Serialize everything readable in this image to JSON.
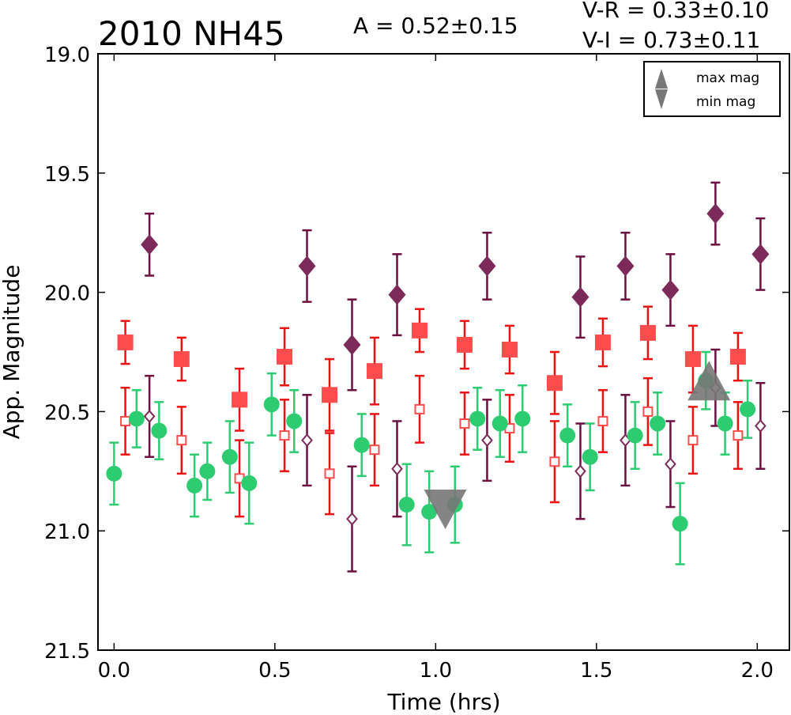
{
  "chart_data": {
    "type": "scatter",
    "title": "2010 NH45",
    "amplitude_text": "A  = 0.52±0.15",
    "color_text_1": "V-R = 0.33±0.10",
    "color_text_2": "V-I  = 0.73±0.11",
    "xlabel": "Time (hrs)",
    "ylabel": "App. Magnitude",
    "xlim": [
      -0.05,
      2.1
    ],
    "ylim": [
      21.5,
      19.0
    ],
    "y_inverted": true,
    "grid": false,
    "xticks": [
      "0.0",
      "0.5",
      "1.0",
      "1.5",
      "2.0"
    ],
    "yticks": [
      "19.0",
      "19.5",
      "20.0",
      "20.5",
      "21.0",
      "21.5"
    ],
    "legend": {
      "position": "top-right",
      "entries": [
        {
          "label": "max mag",
          "marker": "triangle-up"
        },
        {
          "label": "min mag",
          "marker": "triangle-down"
        }
      ]
    },
    "colors": {
      "green": "#2ecc71",
      "red": "#ff4d4d",
      "red_err": "#ee1111",
      "purple": "#7b2a5a",
      "purple_err": "#6b1040",
      "marker_gray": "#777777"
    },
    "series": [
      {
        "style": "green-circle",
        "x": [
          0.0,
          0.07,
          0.14,
          0.25,
          0.29,
          0.36,
          0.42,
          0.49,
          0.56,
          0.77,
          0.91,
          0.98,
          1.06,
          1.13,
          1.2,
          1.27,
          1.41,
          1.48,
          1.62,
          1.69,
          1.76,
          1.84,
          1.9,
          1.97
        ],
        "y": [
          20.76,
          20.53,
          20.58,
          20.81,
          20.75,
          20.69,
          20.8,
          20.47,
          20.54,
          20.64,
          20.89,
          20.92,
          20.89,
          20.53,
          20.55,
          20.53,
          20.6,
          20.69,
          20.6,
          20.55,
          20.97,
          20.37,
          20.55,
          20.49
        ],
        "err": [
          0.13,
          0.12,
          0.12,
          0.13,
          0.12,
          0.15,
          0.17,
          0.13,
          0.13,
          0.13,
          0.17,
          0.17,
          0.16,
          0.13,
          0.14,
          0.14,
          0.13,
          0.14,
          0.14,
          0.13,
          0.17,
          0.12,
          0.13,
          0.12
        ]
      },
      {
        "style": "red-square",
        "x": [
          0.035,
          0.21,
          0.39,
          0.53,
          0.67,
          0.81,
          0.95,
          1.09,
          1.23,
          1.37,
          1.52,
          1.66,
          1.8,
          1.94
        ],
        "y": [
          20.21,
          20.28,
          20.45,
          20.27,
          20.43,
          20.33,
          20.16,
          20.22,
          20.24,
          20.38,
          20.21,
          20.17,
          20.28,
          20.27
        ],
        "err": [
          0.09,
          0.09,
          0.13,
          0.12,
          0.15,
          0.14,
          0.09,
          0.1,
          0.1,
          0.13,
          0.1,
          0.11,
          0.14,
          0.1
        ]
      },
      {
        "style": "red-open-square",
        "x": [
          0.035,
          0.21,
          0.39,
          0.53,
          0.67,
          0.81,
          0.95,
          1.09,
          1.23,
          1.37,
          1.52,
          1.66,
          1.8,
          1.94
        ],
        "y": [
          20.54,
          20.62,
          20.78,
          20.6,
          20.76,
          20.66,
          20.49,
          20.55,
          20.57,
          20.71,
          20.54,
          20.5,
          20.62,
          20.6
        ],
        "err": [
          0.14,
          0.14,
          0.16,
          0.15,
          0.17,
          0.15,
          0.14,
          0.13,
          0.14,
          0.17,
          0.13,
          0.14,
          0.14,
          0.14
        ]
      },
      {
        "style": "purple-diamond",
        "x": [
          0.11,
          0.6,
          0.74,
          0.88,
          1.16,
          1.45,
          1.59,
          1.73,
          1.87,
          2.01
        ],
        "y": [
          19.8,
          19.89,
          20.22,
          20.01,
          19.89,
          20.02,
          19.89,
          19.99,
          19.67,
          19.84
        ],
        "err": [
          0.13,
          0.15,
          0.19,
          0.17,
          0.14,
          0.17,
          0.14,
          0.15,
          0.13,
          0.15
        ]
      },
      {
        "style": "purple-open-diamond",
        "x": [
          0.11,
          0.6,
          0.74,
          0.88,
          1.16,
          1.45,
          1.59,
          1.73,
          1.87,
          2.01
        ],
        "y": [
          20.52,
          20.62,
          20.95,
          20.74,
          20.62,
          20.75,
          20.62,
          20.72,
          20.4,
          20.56
        ],
        "err": [
          0.17,
          0.19,
          0.22,
          0.2,
          0.17,
          0.2,
          0.19,
          0.18,
          0.16,
          0.18
        ]
      }
    ],
    "extrema_markers": [
      {
        "type": "max mag",
        "marker": "triangle-up",
        "x": 1.85,
        "y": 20.38
      },
      {
        "type": "min mag",
        "marker": "triangle-down",
        "x": 1.03,
        "y": 20.9
      }
    ]
  }
}
